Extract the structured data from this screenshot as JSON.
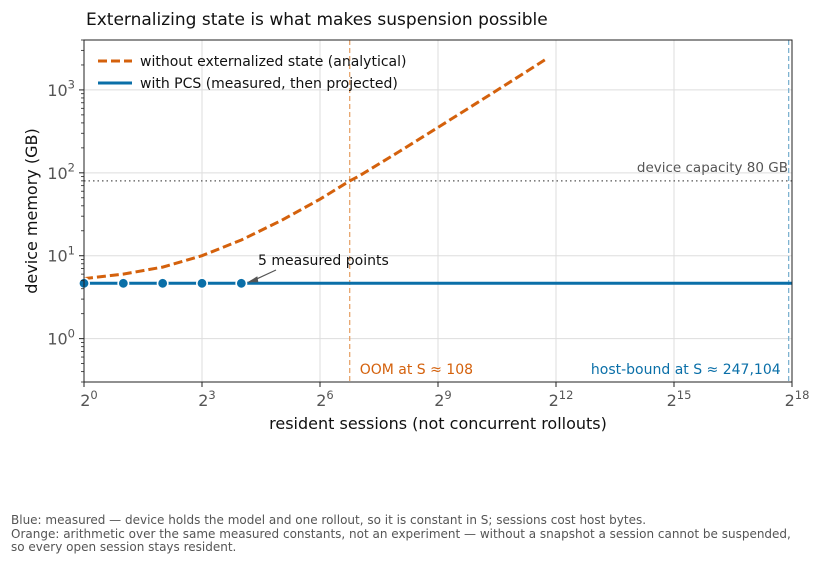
{
  "chart_data": {
    "type": "line",
    "title": "Externalizing state is what makes suspension possible",
    "xlabel": "resident sessions (not concurrent rollouts)",
    "ylabel": "device memory (GB)",
    "x_scale": "log2",
    "y_scale": "log10",
    "xlim": [
      1,
      262144
    ],
    "ylim": [
      0.3,
      4000
    ],
    "x_ticks": [
      {
        "value": 1,
        "base": "2",
        "exp": "0"
      },
      {
        "value": 8,
        "base": "2",
        "exp": "3"
      },
      {
        "value": 64,
        "base": "2",
        "exp": "6"
      },
      {
        "value": 512,
        "base": "2",
        "exp": "9"
      },
      {
        "value": 4096,
        "base": "2",
        "exp": "12"
      },
      {
        "value": 32768,
        "base": "2",
        "exp": "15"
      },
      {
        "value": 262144,
        "base": "2",
        "exp": "18"
      }
    ],
    "y_ticks": [
      {
        "value": 1,
        "base": "10",
        "exp": "0"
      },
      {
        "value": 10,
        "base": "10",
        "exp": "1"
      },
      {
        "value": 100,
        "base": "10",
        "exp": "2"
      },
      {
        "value": 1000,
        "base": "10",
        "exp": "3"
      }
    ],
    "grid": true,
    "legend_position": "top-left",
    "series": [
      {
        "name": "without externalized state (analytical)",
        "style": "dashed",
        "color": "#d4610c",
        "x": [
          1,
          2,
          4,
          8,
          16,
          32,
          64,
          108,
          128,
          256,
          512,
          1024,
          2048,
          3500
        ],
        "y": [
          5.3,
          6.0,
          7.3,
          10.0,
          15.5,
          26.4,
          48.1,
          80,
          91.7,
          179,
          353,
          702,
          1400,
          2400
        ]
      },
      {
        "name": "with PCS (measured, then projected)",
        "style": "solid",
        "color": "#0a6fa8",
        "x": [
          1,
          262144
        ],
        "y": [
          4.65,
          4.65
        ],
        "measured_points": {
          "x": [
            1,
            2,
            4,
            8,
            16
          ],
          "y": [
            4.65,
            4.65,
            4.65,
            4.65,
            4.65
          ]
        }
      }
    ],
    "reference_lines": {
      "device_capacity": {
        "y": 80,
        "label": "device capacity 80 GB",
        "color": "#555555"
      },
      "oom": {
        "x": 108,
        "label": "OOM at S ≈ 108",
        "color": "#d4610c"
      },
      "host_bound": {
        "x": 247104,
        "label": "host-bound at S ≈ 247,104",
        "color": "#0a6fa8"
      }
    },
    "annotation": {
      "text": "5 measured points",
      "x": 16,
      "y": 4.65
    }
  },
  "caption": {
    "line1": "Blue: measured — device holds the model and one rollout, so it is constant in S; sessions cost host bytes.",
    "line2": "Orange: arithmetic over the same measured constants, not an experiment — without a snapshot a session cannot be suspended, so every open session stays resident."
  }
}
